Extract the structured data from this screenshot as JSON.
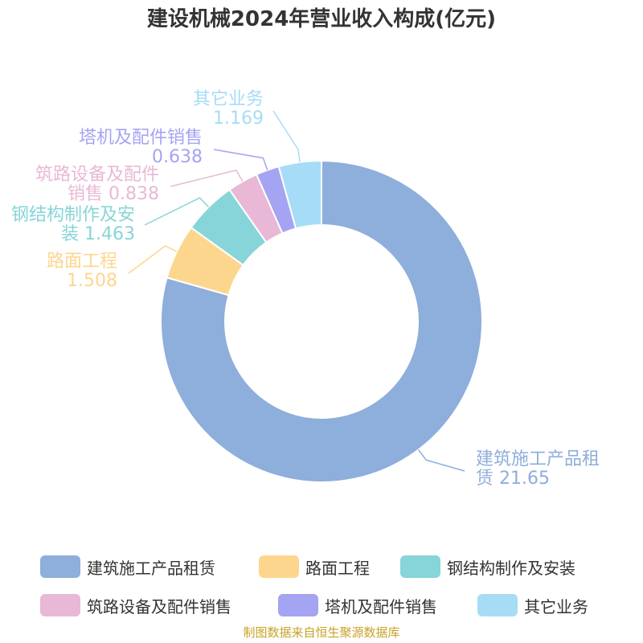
{
  "title": "建设机械2024年营业收入构成(亿元)",
  "source_note": "制图数据来自恒生聚源数据库",
  "chart_data": {
    "type": "pie",
    "subtype": "donut",
    "title": "建设机械2024年营业收入构成(亿元)",
    "legend_position": "bottom",
    "series": [
      {
        "name": "建筑施工产品租赁",
        "value": 21.65,
        "color": "#8eaedb",
        "label_lines": [
          "建筑施工产品租",
          "赁 21.65"
        ]
      },
      {
        "name": "路面工程",
        "value": 1.508,
        "color": "#fdd68e",
        "label_lines": [
          "路面工程",
          "1.508"
        ]
      },
      {
        "name": "钢结构制作及安装",
        "value": 1.463,
        "color": "#87d5d8",
        "label_lines": [
          "钢结构制作及安",
          "装 1.463"
        ]
      },
      {
        "name": "筑路设备及配件销售",
        "value": 0.838,
        "color": "#e9b8d6",
        "label_lines": [
          "筑路设备及配件",
          "销售 0.838"
        ]
      },
      {
        "name": "塔机及配件销售",
        "value": 0.638,
        "color": "#a4a4f3",
        "label_lines": [
          "塔机及配件销售",
          "0.638"
        ]
      },
      {
        "name": "其它业务",
        "value": 1.169,
        "color": "#a6dcf6",
        "label_lines": [
          "其它业务",
          "1.169"
        ]
      }
    ]
  }
}
